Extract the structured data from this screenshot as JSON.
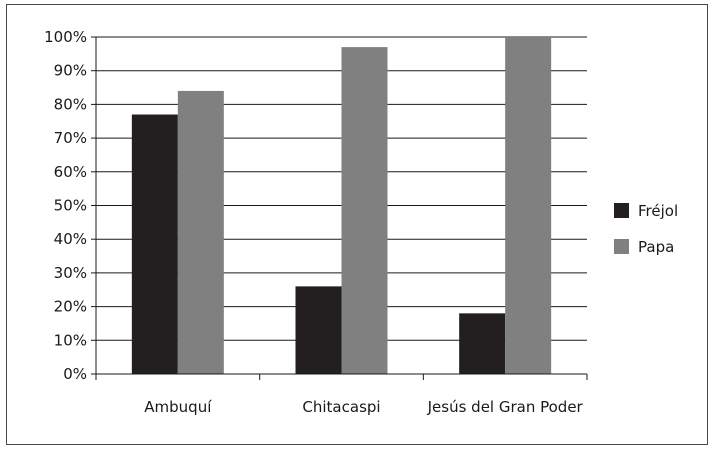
{
  "chart_data": {
    "type": "bar",
    "categories": [
      "Ambuquí",
      "Chitacaspi",
      "Jesús del Gran Poder"
    ],
    "series": [
      {
        "name": "Fréjol",
        "color": "#231f20",
        "values": [
          77,
          26,
          18
        ]
      },
      {
        "name": "Papa",
        "color": "#808080",
        "values": [
          84,
          97,
          100
        ]
      }
    ],
    "ylim": [
      0,
      100
    ],
    "yticks": [
      0,
      10,
      20,
      30,
      40,
      50,
      60,
      70,
      80,
      90,
      100
    ],
    "ytick_labels": [
      "0%",
      "10%",
      "20%",
      "30%",
      "40%",
      "50%",
      "60%",
      "70%",
      "80%",
      "90%",
      "100%"
    ],
    "grid": true,
    "legend_position": "right",
    "title": "",
    "xlabel": "",
    "ylabel": ""
  }
}
